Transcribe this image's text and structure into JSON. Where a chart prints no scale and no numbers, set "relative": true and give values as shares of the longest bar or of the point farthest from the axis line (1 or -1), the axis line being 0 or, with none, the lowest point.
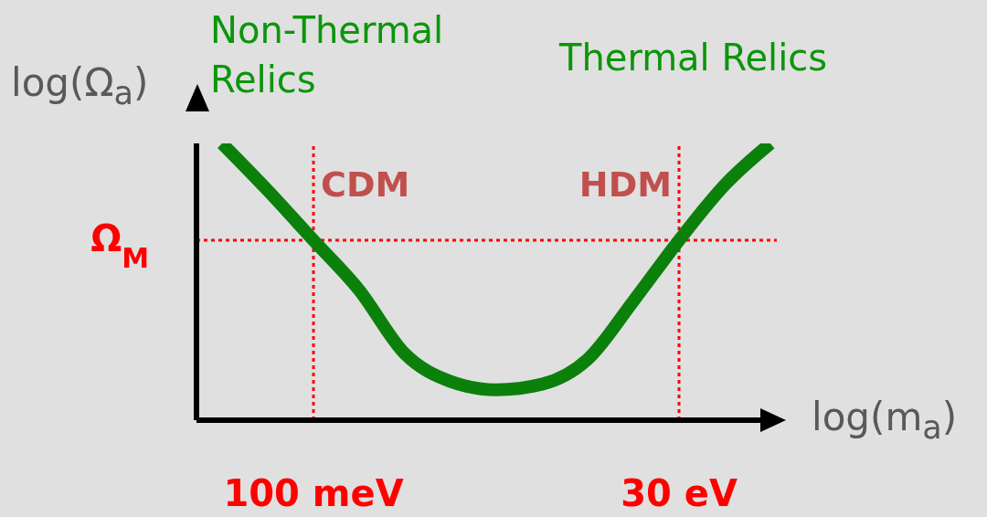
{
  "chart_data": {
    "type": "line",
    "relative": true,
    "xlabel": "log(m$_{a}$)",
    "ylabel": "log(Ω$_{a}$)",
    "annotations": [
      "Non-Thermal Relics",
      "Thermal Relics"
    ],
    "categories": [
      null,
      null,
      "100 meV",
      null,
      null,
      null,
      null,
      null,
      null,
      null,
      "30 eV",
      null,
      null
    ],
    "series": [
      {
        "color": "#0b800b",
        "values": [
          1,
          0.83,
          0.65,
          0.47,
          0.24,
          0.14,
          0.11,
          0.13,
          0.22,
          0.43,
          0.65,
          0.85,
          1
        ]
      }
    ],
    "ref_lines": [
      {
        "axis": "y",
        "value": 0.65,
        "label": "Ω$_{M}$",
        "color": "#ff0000",
        "line_style": "dotted"
      },
      {
        "axis": "x",
        "value": "100 meV",
        "label": "CDM",
        "color": "#ff0000",
        "line_style": "dotted"
      },
      {
        "axis": "x",
        "value": "30 eV",
        "label": "HDM",
        "color": "#ff0000",
        "line_style": "dotted"
      }
    ],
    "grid": false,
    "legend": false,
    "marker": "none",
    "line_style": "solid"
  }
}
